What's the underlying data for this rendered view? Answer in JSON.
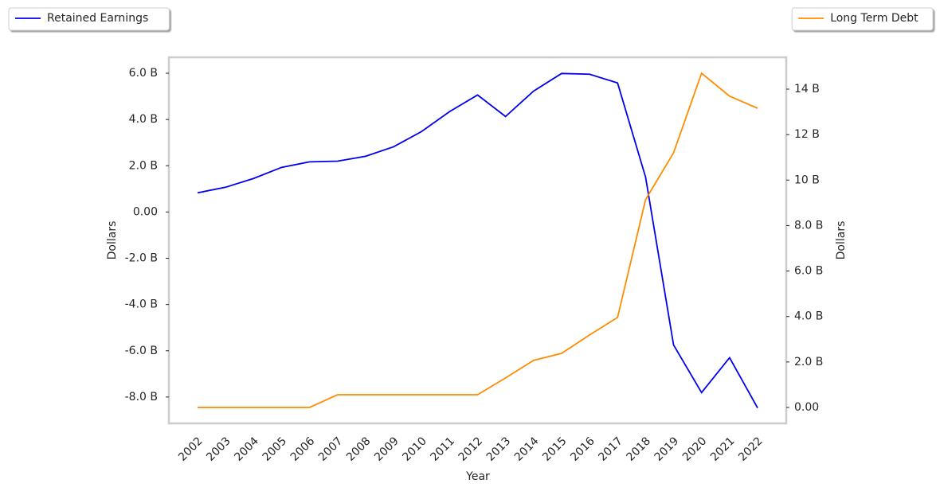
{
  "chart_data": {
    "type": "line",
    "xlabel": "Year",
    "ylabel": "Dollars",
    "y2label": "Dollars",
    "x": [
      "2002",
      "2003",
      "2004",
      "2005",
      "2006",
      "2007",
      "2008",
      "2009",
      "2010",
      "2011",
      "2012",
      "2013",
      "2014",
      "2015",
      "2016",
      "2017",
      "2018",
      "2019",
      "2020",
      "2021",
      "2022"
    ],
    "series": [
      {
        "name": "Retained Earnings",
        "color": "#0000ee",
        "legend": "upper left",
        "values": [
          0.83,
          1.07,
          1.45,
          1.93,
          2.17,
          2.2,
          2.41,
          2.82,
          3.48,
          4.34,
          5.06,
          4.13,
          5.23,
          5.99,
          5.96,
          5.58,
          1.51,
          -5.75,
          -7.81,
          -6.3,
          -8.47
        ]
      },
      {
        "name": "Long Term Debt",
        "color": "#ff8c00",
        "axis": "y2",
        "legend": "upper right",
        "values": [
          0,
          0,
          0,
          0,
          0,
          0.56,
          0.56,
          0.56,
          0.56,
          0.56,
          0.56,
          1.3,
          2.07,
          2.38,
          3.19,
          3.96,
          9.14,
          11.2,
          14.7,
          13.69,
          13.16
        ]
      }
    ],
    "ylim": [
      -9.14,
      6.69
    ],
    "yticks": [
      {
        "value": 6,
        "label": "6.0 B"
      },
      {
        "value": 4,
        "label": "4.0 B"
      },
      {
        "value": 2,
        "label": "2.0 B"
      },
      {
        "value": 0,
        "label": "0.00"
      },
      {
        "value": -2,
        "label": "-2.0 B"
      },
      {
        "value": -4,
        "label": "-4.0 B"
      },
      {
        "value": -6,
        "label": "-6.0 B"
      },
      {
        "value": -8,
        "label": "-8.0 B"
      }
    ],
    "y2lim": [
      -0.7,
      15.4
    ],
    "y2ticks": [
      {
        "value": 14,
        "label": "14 B"
      },
      {
        "value": 12,
        "label": "12 B"
      },
      {
        "value": 10,
        "label": "10 B"
      },
      {
        "value": 8,
        "label": "8.0 B"
      },
      {
        "value": 6,
        "label": "6.0 B"
      },
      {
        "value": 4,
        "label": "4.0 B"
      },
      {
        "value": 2,
        "label": "2.0 B"
      },
      {
        "value": 0,
        "label": "0.00"
      }
    ],
    "grid": false
  }
}
